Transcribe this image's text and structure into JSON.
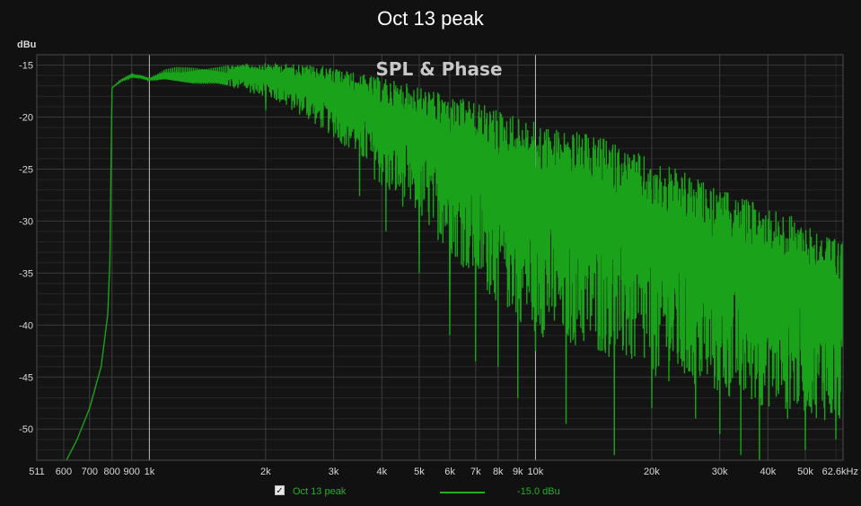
{
  "chart_data": {
    "type": "line",
    "title": "Oct 13 peak",
    "overlay_label": "SPL & Phase",
    "ylabel": "dBu",
    "xscale": "log",
    "xlim": [
      511,
      62600
    ],
    "ylim": [
      -53,
      -14
    ],
    "yticks": [
      -15,
      -20,
      -25,
      -30,
      -35,
      -40,
      -45,
      -50
    ],
    "xticks": [
      {
        "v": 511,
        "label": "511"
      },
      {
        "v": 600,
        "label": "600"
      },
      {
        "v": 700,
        "label": "700"
      },
      {
        "v": 800,
        "label": "800"
      },
      {
        "v": 900,
        "label": "900"
      },
      {
        "v": 1000,
        "label": "1k"
      },
      {
        "v": 2000,
        "label": "2k"
      },
      {
        "v": 3000,
        "label": "3k"
      },
      {
        "v": 4000,
        "label": "4k"
      },
      {
        "v": 5000,
        "label": "5k"
      },
      {
        "v": 6000,
        "label": "6k"
      },
      {
        "v": 7000,
        "label": "7k"
      },
      {
        "v": 8000,
        "label": "8k"
      },
      {
        "v": 9000,
        "label": "9k"
      },
      {
        "v": 10000,
        "label": "10k"
      },
      {
        "v": 20000,
        "label": "20k"
      },
      {
        "v": 30000,
        "label": "30k"
      },
      {
        "v": 40000,
        "label": "40k"
      },
      {
        "v": 50000,
        "label": "50k"
      },
      {
        "v": 62600,
        "label": "62.6kHz"
      }
    ],
    "grid": true,
    "series": [
      {
        "name": "Oct 13 peak",
        "color": "#1aa31a",
        "upper_envelope": [
          [
            600,
            -53.5
          ],
          [
            650,
            -51
          ],
          [
            700,
            -48
          ],
          [
            750,
            -44
          ],
          [
            780,
            -39
          ],
          [
            790,
            -34
          ],
          [
            800,
            -17.2
          ],
          [
            850,
            -16.3
          ],
          [
            900,
            -15.8
          ],
          [
            950,
            -15.9
          ],
          [
            1000,
            -16.2
          ],
          [
            1100,
            -15.3
          ],
          [
            1300,
            -15.0
          ],
          [
            1500,
            -15.0
          ],
          [
            2000,
            -14.8
          ],
          [
            2500,
            -14.9
          ],
          [
            3000,
            -15.2
          ],
          [
            3500,
            -15.8
          ],
          [
            4000,
            -16.2
          ],
          [
            5000,
            -17.0
          ],
          [
            6000,
            -18.0
          ],
          [
            7000,
            -18.5
          ],
          [
            8000,
            -19.2
          ],
          [
            10000,
            -20.5
          ],
          [
            15000,
            -22.0
          ],
          [
            20000,
            -24.0
          ],
          [
            25000,
            -25.5
          ],
          [
            30000,
            -27.0
          ],
          [
            40000,
            -28.5
          ],
          [
            50000,
            -30.0
          ],
          [
            62600,
            -32.0
          ]
        ],
        "lower_envelope": [
          [
            600,
            -53.5
          ],
          [
            650,
            -51
          ],
          [
            700,
            -48
          ],
          [
            750,
            -44
          ],
          [
            780,
            -39
          ],
          [
            790,
            -34
          ],
          [
            800,
            -17.2
          ],
          [
            850,
            -16.5
          ],
          [
            900,
            -16.2
          ],
          [
            950,
            -16.3
          ],
          [
            1000,
            -16.5
          ],
          [
            1100,
            -16.5
          ],
          [
            1300,
            -17.0
          ],
          [
            1500,
            -17.0
          ],
          [
            2000,
            -18.0
          ],
          [
            2500,
            -20.0
          ],
          [
            3000,
            -22.0
          ],
          [
            3500,
            -24.0
          ],
          [
            4000,
            -27.0
          ],
          [
            5000,
            -30.0
          ],
          [
            6000,
            -33.0
          ],
          [
            7000,
            -36.0
          ],
          [
            8000,
            -38.0
          ],
          [
            10000,
            -41.0
          ],
          [
            15000,
            -43.0
          ],
          [
            20000,
            -45.0
          ],
          [
            25000,
            -46.0
          ],
          [
            30000,
            -47.0
          ],
          [
            40000,
            -48.0
          ],
          [
            50000,
            -48.5
          ],
          [
            62600,
            -50.0
          ]
        ],
        "notable_dips": [
          [
            2000,
            -19.3
          ],
          [
            3000,
            -21.0
          ],
          [
            3500,
            -27.6
          ],
          [
            4100,
            -31.0
          ],
          [
            5000,
            -35.0
          ],
          [
            6000,
            -41.0
          ],
          [
            7000,
            -43.5
          ],
          [
            8000,
            -44.0
          ],
          [
            9000,
            -47.0
          ],
          [
            10000,
            -42.5
          ],
          [
            12000,
            -49.5
          ],
          [
            16000,
            -52.5
          ],
          [
            20000,
            -48.0
          ],
          [
            26000,
            -49.0
          ],
          [
            30000,
            -50.5
          ],
          [
            34000,
            -52.5
          ],
          [
            38000,
            -55.0
          ],
          [
            45000,
            -49.0
          ],
          [
            50000,
            -52.0
          ],
          [
            60000,
            -51.0
          ]
        ]
      }
    ],
    "markers": [
      1000,
      10000
    ]
  },
  "legend": {
    "checked": "✓",
    "name": "Oct 13 peak",
    "value": "-15.0 dBu"
  },
  "colors": {
    "background": "#111111",
    "plot_background": "#141414",
    "grid_major": "#3a3a3a",
    "grid_minor": "#262626",
    "marker": "#cfcfcf",
    "trace": "#1aa31a"
  }
}
